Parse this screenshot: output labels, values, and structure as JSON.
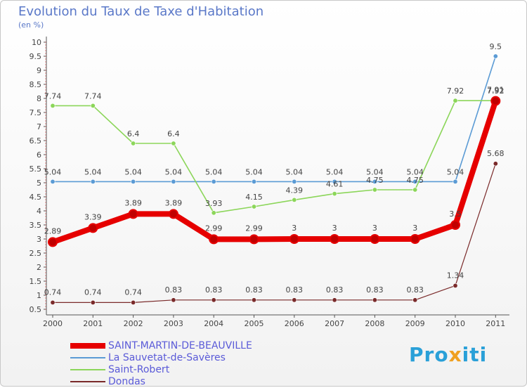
{
  "title": "Evolution du Taux de Taxe d'Habitation",
  "subtitle": "(en %)",
  "brand": {
    "prefix": "Pro",
    "accent": "x",
    "suffix": "iti"
  },
  "chart_data": {
    "type": "line",
    "title": "Evolution du Taux de Taxe d'Habitation",
    "ylabel": "(en %)",
    "xlabel": "",
    "ylim": [
      0.5,
      10
    ],
    "yticks": [
      0.5,
      1,
      1.5,
      2,
      2.5,
      3,
      3.5,
      4,
      4.5,
      5,
      5.5,
      6,
      6.5,
      7,
      7.5,
      8,
      8.5,
      9,
      9.5,
      10
    ],
    "x": [
      "2000",
      "2001",
      "2002",
      "2003",
      "2004",
      "2005",
      "2006",
      "2007",
      "2008",
      "2009",
      "2010",
      "2011"
    ],
    "grid": false,
    "legend_position": "bottom-left",
    "series": [
      {
        "name": "Dondas",
        "color": "#7a2a2a",
        "values": [
          0.74,
          0.74,
          0.74,
          0.83,
          0.83,
          0.83,
          0.83,
          0.83,
          0.83,
          0.83,
          1.34,
          5.68
        ],
        "labels": [
          "0.74",
          "0.74",
          "0.74",
          "0.83",
          "0.83",
          "0.83",
          "0.83",
          "0.83",
          "0.83",
          "0.83",
          "1.34",
          "5.68"
        ]
      },
      {
        "name": "La Sauvetat-de-Savères",
        "color": "#5b9bd5",
        "values": [
          5.04,
          5.04,
          5.04,
          5.04,
          5.04,
          5.04,
          5.04,
          5.04,
          5.04,
          5.04,
          5.04,
          9.5
        ],
        "labels": [
          "5.04",
          "5.04",
          "5.04",
          "5.04",
          "5.04",
          "5.04",
          "5.04",
          "5.04",
          "5.04",
          "5.04",
          "5.04",
          "9.5"
        ]
      },
      {
        "name": "Saint-Robert",
        "color": "#8cd65a",
        "values": [
          7.74,
          7.74,
          6.4,
          6.4,
          3.93,
          4.15,
          4.39,
          4.61,
          4.75,
          4.75,
          7.92,
          7.92
        ],
        "labels": [
          "7.74",
          "7.74",
          "6.4",
          "6.4",
          "3.93",
          "4.15",
          "4.39",
          "4.61",
          "4.75",
          "4.75",
          "7.92",
          "7.92"
        ]
      },
      {
        "name": "SAINT-MARTIN-DE-BEAUVILLE",
        "color": "#e60000",
        "values": [
          2.89,
          3.39,
          3.89,
          3.89,
          2.99,
          2.99,
          3,
          3,
          3,
          3,
          3.5,
          7.91
        ],
        "labels": [
          "2.89",
          "3.39",
          "3.89",
          "3.89",
          "2.99",
          "2.99",
          "3",
          "3",
          "3",
          "3",
          "3.5",
          "7.91"
        ]
      }
    ],
    "legend": [
      "SAINT-MARTIN-DE-BEAUVILLE",
      "La Sauvetat-de-Savères",
      "Saint-Robert",
      "Dondas"
    ]
  }
}
